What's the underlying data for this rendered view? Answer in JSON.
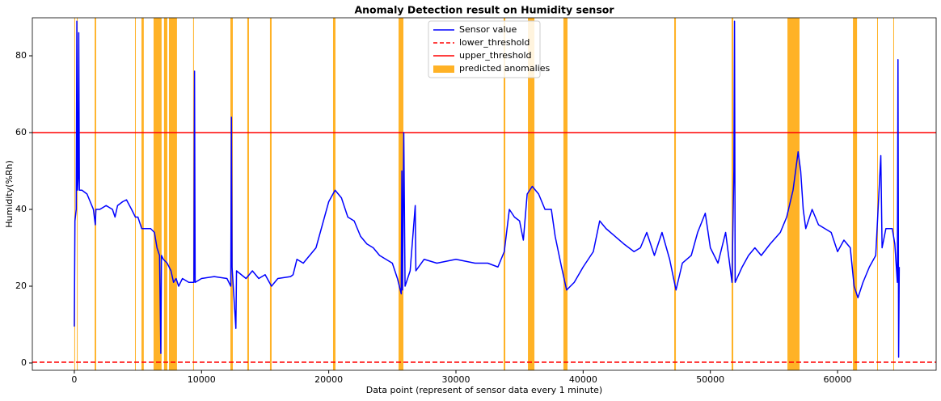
{
  "chart_data": {
    "type": "line",
    "title": "Anomaly Detection result on Humidity sensor",
    "x_label": "Data point (represent of sensor data every 1 minute)",
    "y_label": "Humidity(%Rh)",
    "xlim": [
      -3300,
      67750
    ],
    "ylim": [
      -1.9,
      89.9
    ],
    "xticks": [
      0,
      10000,
      20000,
      30000,
      40000,
      50000,
      60000
    ],
    "yticks": [
      0,
      20,
      40,
      60,
      80
    ],
    "legend": "upper center",
    "x": [
      0,
      50,
      150,
      200,
      250,
      300,
      350,
      400,
      600,
      1000,
      1500,
      1650,
      1700,
      2000,
      2500,
      3000,
      3200,
      3400,
      3800,
      4100,
      4500,
      4800,
      5000,
      5300,
      5600,
      6000,
      6300,
      6500,
      6700,
      6800,
      6850,
      7000,
      7300,
      7600,
      7800,
      8000,
      8200,
      8500,
      9000,
      9400,
      9450,
      9500,
      10000,
      11000,
      12000,
      12300,
      12350,
      12400,
      12700,
      12750,
      13500,
      14000,
      14500,
      15000,
      15500,
      16000,
      17000,
      17200,
      17500,
      18000,
      18500,
      19000,
      19500,
      20000,
      20500,
      21000,
      21500,
      22000,
      22500,
      23000,
      23500,
      24000,
      24500,
      25000,
      25400,
      25700,
      25750,
      25800,
      25900,
      26000,
      26400,
      26800,
      26850,
      27500,
      28500,
      30000,
      31500,
      32500,
      33300,
      33800,
      34200,
      34600,
      35000,
      35300,
      35600,
      36000,
      36500,
      37000,
      37500,
      37800,
      38300,
      38700,
      39300,
      40000,
      40800,
      41300,
      41800,
      42500,
      43200,
      44000,
      44500,
      45000,
      45600,
      46200,
      46800,
      47300,
      47800,
      48500,
      49000,
      49600,
      50000,
      50600,
      51200,
      51700,
      51850,
      51900,
      51950,
      52500,
      53000,
      53500,
      54000,
      54700,
      55500,
      56000,
      56500,
      56900,
      57100,
      57300,
      57500,
      58000,
      58500,
      59000,
      59500,
      60000,
      60500,
      61000,
      61300,
      61600,
      62000,
      62500,
      63000,
      63400,
      63500,
      63800,
      64300,
      64500,
      64700,
      64750,
      64800,
      64850
    ],
    "series": [
      {
        "name": "Sensor value",
        "color": "#0000ff",
        "values": [
          9.5,
          37,
          40,
          89,
          45,
          48,
          86,
          45,
          45,
          44,
          40,
          36,
          40,
          40,
          41,
          40,
          38,
          41,
          42,
          42.5,
          40,
          38,
          38,
          35,
          35,
          35,
          34,
          30,
          28,
          2.5,
          28,
          27,
          26,
          24,
          21,
          22,
          20,
          22,
          21,
          21,
          76,
          21,
          22,
          22.5,
          22,
          20,
          64,
          25,
          9,
          24,
          22,
          24,
          22,
          23,
          20,
          22,
          22.5,
          23,
          27,
          26,
          28,
          30,
          36,
          42,
          45,
          43,
          38,
          37,
          33,
          31,
          30,
          28,
          27,
          26,
          22,
          18,
          50,
          19,
          60,
          20,
          24,
          41,
          24,
          27,
          26,
          27,
          26,
          26,
          25,
          29,
          40,
          38,
          37,
          32,
          44,
          46,
          44,
          40,
          40,
          33,
          25,
          19,
          21,
          25,
          29,
          37,
          35,
          33,
          31,
          29,
          30,
          34,
          28,
          34,
          27,
          19,
          26,
          28,
          34,
          39,
          30,
          26,
          34,
          21,
          50,
          89,
          21,
          25,
          28,
          30,
          28,
          31,
          34,
          38,
          45,
          55,
          50,
          40,
          35,
          40,
          36,
          35,
          34,
          29,
          32,
          30,
          20,
          17,
          21,
          25,
          28,
          54,
          30,
          35,
          35,
          31,
          21,
          79,
          1.5,
          25
        ]
      }
    ],
    "thresholds": [
      {
        "name": "lower_threshold",
        "value": 0.2,
        "color": "#ff0000",
        "dashed": true
      },
      {
        "name": "upper_threshold",
        "value": 60,
        "color": "#ff0000",
        "dashed": false
      }
    ],
    "anomalies": {
      "name": "predicted anomalies",
      "color": "#ffa500",
      "spans": [
        [
          0,
          60
        ],
        [
          200,
          260
        ],
        [
          1600,
          1720
        ],
        [
          4770,
          4800
        ],
        [
          5280,
          5460
        ],
        [
          6230,
          6860
        ],
        [
          7050,
          7310
        ],
        [
          7440,
          8070
        ],
        [
          9340,
          9380
        ],
        [
          12270,
          12460
        ],
        [
          13600,
          13730
        ],
        [
          15380,
          15510
        ],
        [
          20340,
          20530
        ],
        [
          25490,
          25870
        ],
        [
          33750,
          33880
        ],
        [
          35660,
          36170
        ],
        [
          38450,
          38770
        ],
        [
          47160,
          47290
        ],
        [
          51670,
          51800
        ],
        [
          56060,
          57010
        ],
        [
          61210,
          61530
        ],
        [
          63110,
          63140
        ],
        [
          64380,
          64410
        ]
      ]
    }
  }
}
